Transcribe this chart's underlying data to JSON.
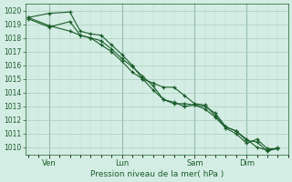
{
  "xlabel": "Pression niveau de la mer( hPa )",
  "bg_color": "#d4ede4",
  "grid_color_major": "#a8ccbc",
  "grid_color_minor": "#b8dcd0",
  "line_color": "#1a5c2a",
  "ylim": [
    1009.5,
    1020.5
  ],
  "yticks": [
    1010,
    1011,
    1012,
    1013,
    1014,
    1015,
    1016,
    1017,
    1018,
    1019,
    1020
  ],
  "xtick_labels": [
    "Ven",
    "Lun",
    "Sam",
    "Dim"
  ],
  "series": [
    {
      "x": [
        0,
        2,
        4,
        5,
        6,
        7,
        8,
        9,
        10,
        11,
        12,
        13,
        14,
        15,
        16,
        17,
        18,
        19,
        20,
        21,
        22,
        23,
        24
      ],
      "y": [
        1019.5,
        1019.8,
        1019.9,
        1018.5,
        1018.3,
        1018.2,
        1017.5,
        1016.8,
        1016.0,
        1015.0,
        1014.7,
        1014.4,
        1014.4,
        1013.8,
        1013.2,
        1013.1,
        1012.3,
        1011.5,
        1011.2,
        1010.6,
        1010.0,
        1009.8,
        1009.9
      ]
    },
    {
      "x": [
        0,
        2,
        4,
        5,
        6,
        7,
        8,
        9,
        10,
        11,
        12,
        13,
        14,
        15,
        16,
        17,
        18,
        19,
        20,
        21,
        22,
        23,
        24
      ],
      "y": [
        1019.4,
        1018.8,
        1019.2,
        1018.2,
        1018.0,
        1017.8,
        1017.2,
        1016.5,
        1015.9,
        1015.2,
        1014.5,
        1013.5,
        1013.3,
        1013.0,
        1013.1,
        1013.0,
        1012.5,
        1011.5,
        1011.2,
        1010.5,
        1010.4,
        1009.7,
        1010.0
      ]
    },
    {
      "x": [
        0,
        2,
        4,
        5,
        6,
        7,
        8,
        9,
        10,
        11,
        12,
        13,
        14,
        15,
        16,
        17,
        18,
        19,
        20,
        21,
        22,
        23,
        24
      ],
      "y": [
        1019.5,
        1018.9,
        1018.5,
        1018.2,
        1018.0,
        1017.5,
        1017.0,
        1016.3,
        1015.5,
        1015.0,
        1014.2,
        1013.5,
        1013.2,
        1013.2,
        1013.1,
        1012.8,
        1012.2,
        1011.4,
        1011.0,
        1010.3,
        1010.6,
        1009.9,
        1009.9
      ]
    }
  ],
  "vline_x": [
    2,
    9,
    16,
    21
  ],
  "xtick_x": [
    2,
    9,
    16,
    21
  ],
  "xlim": [
    -0.3,
    25
  ]
}
